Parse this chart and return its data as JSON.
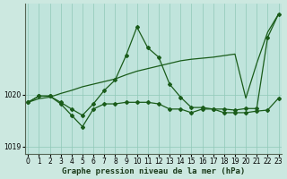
{
  "title": "Graphe pression niveau de la mer (hPa)",
  "background_color": "#cce8e0",
  "plot_bg_color": "#c0e4dc",
  "grid_color": "#90c8b8",
  "line_color": "#1a5c1a",
  "xlim": [
    -0.3,
    23.3
  ],
  "ylim": [
    1018.85,
    1021.75
  ],
  "yticks": [
    1019,
    1020
  ],
  "xticks": [
    0,
    1,
    2,
    3,
    4,
    5,
    6,
    7,
    8,
    9,
    10,
    11,
    12,
    13,
    14,
    15,
    16,
    17,
    18,
    19,
    20,
    21,
    22,
    23
  ],
  "series1_x": [
    0,
    1,
    2,
    3,
    4,
    5,
    6,
    7,
    8,
    9,
    10,
    11,
    12,
    13,
    14,
    15,
    16,
    17,
    18,
    19,
    20,
    21,
    22,
    23
  ],
  "series1_y": [
    1019.85,
    1019.92,
    1019.95,
    1020.02,
    1020.08,
    1020.15,
    1020.2,
    1020.25,
    1020.3,
    1020.38,
    1020.45,
    1020.5,
    1020.55,
    1020.6,
    1020.65,
    1020.68,
    1020.7,
    1020.72,
    1020.75,
    1020.78,
    1019.93,
    1020.6,
    1021.2,
    1021.55
  ],
  "series2_x": [
    0,
    1,
    2,
    3,
    4,
    5,
    6,
    7,
    8,
    9,
    10,
    11,
    12,
    13,
    14,
    15,
    16,
    17,
    18,
    19,
    20,
    21,
    22,
    23
  ],
  "series2_y": [
    1019.85,
    1019.97,
    1019.97,
    1019.85,
    1019.72,
    1019.6,
    1019.82,
    1020.08,
    1020.28,
    1020.75,
    1021.3,
    1020.9,
    1020.72,
    1020.2,
    1019.95,
    1019.75,
    1019.75,
    1019.72,
    1019.72,
    1019.7,
    1019.73,
    1019.73,
    1021.1,
    1021.55
  ],
  "series3_x": [
    0,
    1,
    2,
    3,
    4,
    5,
    6,
    7,
    8,
    9,
    10,
    11,
    12,
    13,
    14,
    15,
    16,
    17,
    18,
    19,
    20,
    21,
    22,
    23
  ],
  "series3_y": [
    1019.85,
    1019.97,
    1019.97,
    1019.82,
    1019.6,
    1019.38,
    1019.72,
    1019.82,
    1019.82,
    1019.85,
    1019.85,
    1019.85,
    1019.82,
    1019.72,
    1019.72,
    1019.65,
    1019.72,
    1019.72,
    1019.65,
    1019.65,
    1019.65,
    1019.68,
    1019.7,
    1019.93
  ],
  "marker": "D",
  "marker_size": 2.0,
  "linewidth": 0.9,
  "tick_fontsize": 5.5,
  "title_fontsize": 6.5
}
